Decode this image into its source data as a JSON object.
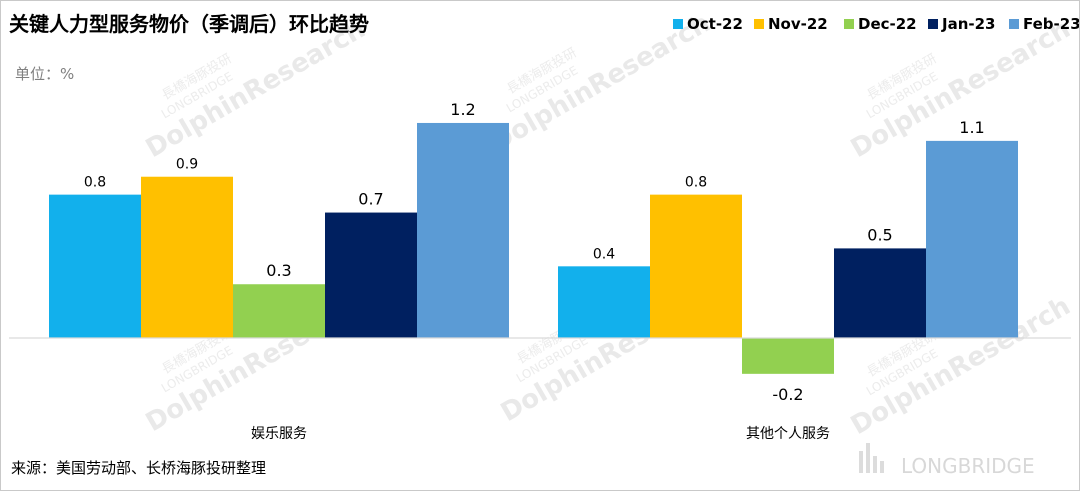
{
  "chart_data": {
    "type": "bar",
    "title": "关键人力型服务物价（季调后）环比趋势",
    "unit_label": "单位：%",
    "categories": [
      "娱乐服务",
      "其他个人服务"
    ],
    "series": [
      {
        "name": "Oct-22",
        "color": "#12B0EC",
        "values": [
          0.8,
          0.4
        ]
      },
      {
        "name": "Nov-22",
        "color": "#FFC000",
        "values": [
          0.9,
          0.8
        ]
      },
      {
        "name": "Dec-22",
        "color": "#92D050",
        "values": [
          0.3,
          -0.2
        ]
      },
      {
        "name": "Jan-23",
        "color": "#002060",
        "values": [
          0.7,
          0.5
        ]
      },
      {
        "name": "Feb-23",
        "color": "#5B9BD5",
        "values": [
          1.2,
          1.1
        ]
      }
    ],
    "data_label_format": "0.1",
    "ylim": [
      -0.2,
      1.2
    ],
    "legend_position": "top-right",
    "grid": false,
    "source": "来源：美国劳动部、长桥海豚投研整理"
  },
  "watermark": {
    "brand_cn": "長橋海豚投研",
    "brand_en": "LONGBRIDGE",
    "brand_research": "DolphinResearch",
    "logo_text": "LONGBRIDGE"
  }
}
